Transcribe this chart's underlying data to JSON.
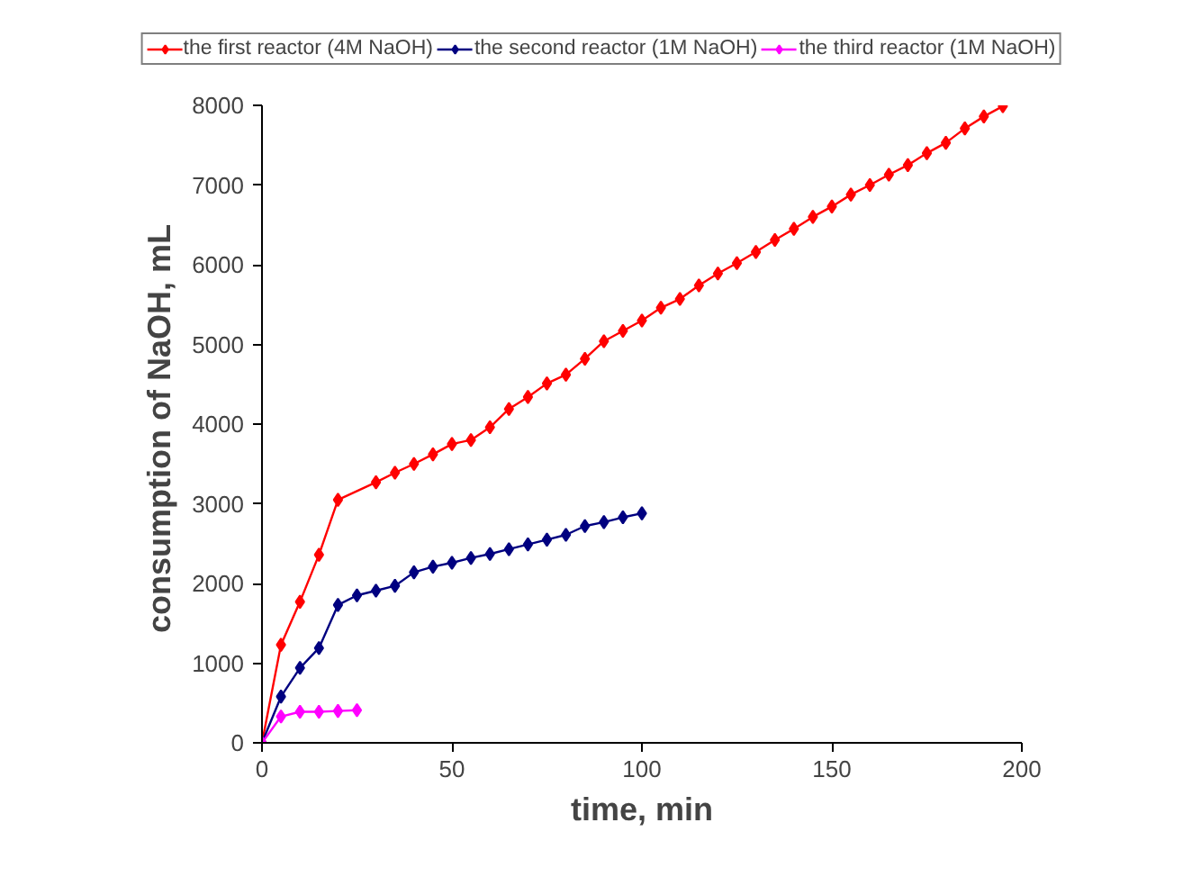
{
  "chart_data": {
    "type": "line",
    "xlabel": "time, min",
    "ylabel": "consumption of  NaOH, mL",
    "xlim": [
      0,
      200
    ],
    "ylim": [
      0,
      8000
    ],
    "xticks": [
      0,
      50,
      100,
      150,
      200
    ],
    "yticks": [
      0,
      1000,
      2000,
      3000,
      4000,
      5000,
      6000,
      7000,
      8000
    ],
    "grid": false,
    "legend": "top",
    "marker": "diamond",
    "line_style": "solid",
    "series": [
      {
        "name": "the first reactor (4M NaOH)",
        "color": "#ff0000",
        "x": [
          0,
          5,
          10,
          15,
          20,
          30,
          35,
          40,
          45,
          50,
          55,
          60,
          65,
          70,
          75,
          80,
          85,
          90,
          95,
          100,
          105,
          110,
          115,
          120,
          125,
          130,
          135,
          140,
          145,
          150,
          155,
          160,
          165,
          170,
          175,
          180,
          185,
          190,
          195
        ],
        "values": [
          0,
          1230,
          1770,
          2360,
          3050,
          3270,
          3390,
          3500,
          3620,
          3750,
          3800,
          3960,
          4190,
          4340,
          4510,
          4620,
          4820,
          5040,
          5170,
          5300,
          5460,
          5570,
          5740,
          5890,
          6020,
          6160,
          6310,
          6450,
          6600,
          6730,
          6880,
          7000,
          7130,
          7250,
          7400,
          7530,
          7710,
          7860,
          7990
        ]
      },
      {
        "name": "the second reactor (1M NaOH)",
        "color": "#000080",
        "x": [
          0,
          5,
          10,
          15,
          20,
          25,
          30,
          35,
          40,
          45,
          50,
          55,
          60,
          65,
          70,
          75,
          80,
          85,
          90,
          95,
          100
        ],
        "values": [
          0,
          580,
          940,
          1190,
          1730,
          1850,
          1910,
          1970,
          2140,
          2210,
          2260,
          2320,
          2370,
          2430,
          2490,
          2550,
          2610,
          2720,
          2770,
          2830,
          2880
        ]
      },
      {
        "name": "the third reactor (1M NaOH)",
        "color": "#ff00ff",
        "x": [
          0,
          5,
          10,
          15,
          20,
          25
        ],
        "values": [
          0,
          330,
          390,
          390,
          400,
          410
        ]
      }
    ]
  }
}
